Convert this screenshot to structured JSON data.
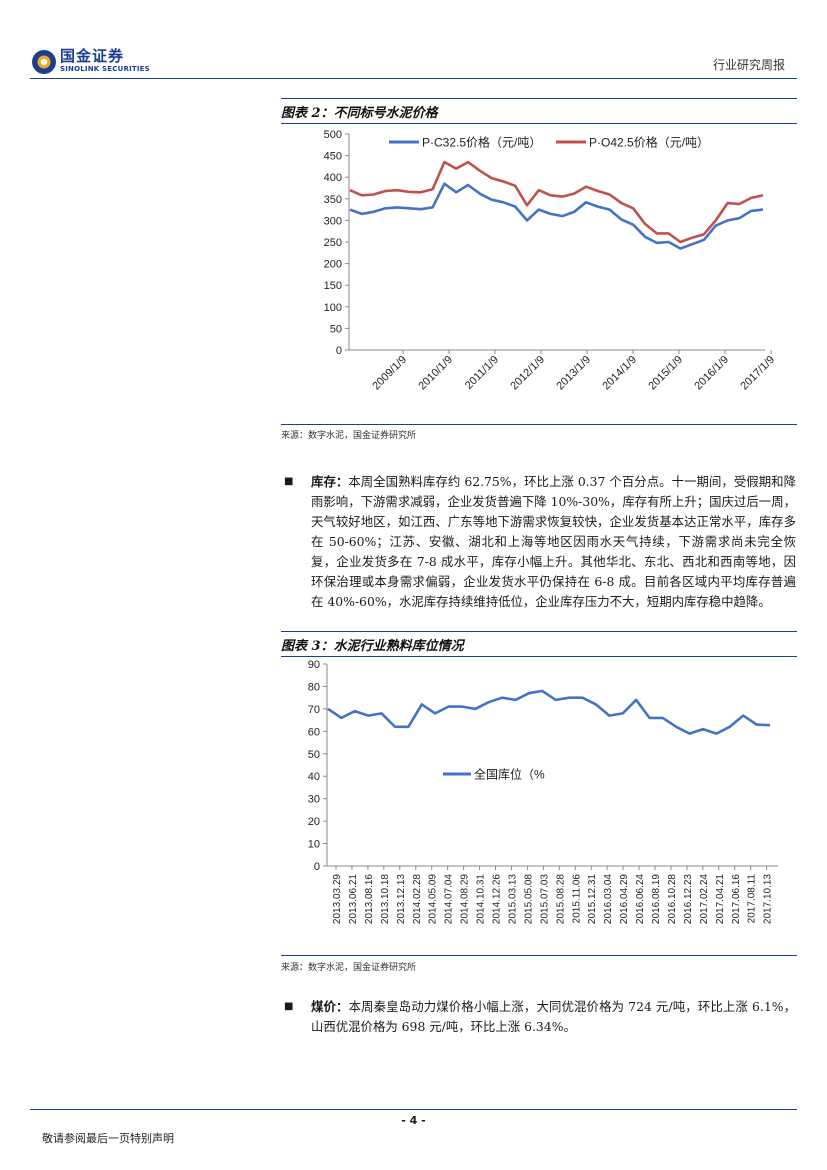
{
  "header": {
    "logo_cn": "国金证券",
    "logo_en": "SINOLINK SECURITIES",
    "report_type": "行业研究周报"
  },
  "figure2": {
    "title": "图表 2：不同标号水泥价格",
    "source": "来源：数字水泥，国金证券研究所",
    "chart_data": {
      "type": "line",
      "title": "",
      "ylim": [
        0,
        500
      ],
      "yticks": [
        "0",
        "50",
        "100",
        "150",
        "200",
        "250",
        "300",
        "350",
        "400",
        "450",
        "500"
      ],
      "xticks": [
        "2009/1/9",
        "2010/1/9",
        "2011/1/9",
        "2012/1/9",
        "2013/1/9",
        "2014/1/9",
        "2015/1/9",
        "2016/1/9",
        "2017/1/9"
      ],
      "x": [
        "2009-01",
        "2009-04",
        "2009-07",
        "2009-10",
        "2010-01",
        "2010-04",
        "2010-07",
        "2010-10",
        "2011-01",
        "2011-04",
        "2011-07",
        "2011-10",
        "2012-01",
        "2012-04",
        "2012-07",
        "2012-10",
        "2013-01",
        "2013-04",
        "2013-07",
        "2013-10",
        "2014-01",
        "2014-04",
        "2014-07",
        "2014-10",
        "2015-01",
        "2015-04",
        "2015-07",
        "2015-10",
        "2016-01",
        "2016-04",
        "2016-07",
        "2016-10",
        "2017-01",
        "2017-04",
        "2017-07",
        "2017-10"
      ],
      "series": [
        {
          "name": "P·C32.5价格（元/吨）",
          "color": "#4472c4",
          "values": [
            325,
            315,
            320,
            328,
            330,
            328,
            326,
            330,
            385,
            365,
            382,
            362,
            348,
            342,
            332,
            300,
            325,
            315,
            310,
            320,
            342,
            332,
            325,
            302,
            290,
            262,
            248,
            250,
            235,
            245,
            255,
            288,
            300,
            305,
            322,
            325
          ]
        },
        {
          "name": "P·O42.5价格（元/吨）",
          "color": "#c0504d",
          "values": [
            370,
            358,
            360,
            368,
            370,
            366,
            365,
            372,
            435,
            420,
            435,
            415,
            398,
            390,
            380,
            335,
            370,
            358,
            355,
            362,
            378,
            368,
            360,
            340,
            328,
            292,
            270,
            270,
            250,
            260,
            268,
            300,
            340,
            338,
            352,
            358
          ]
        }
      ]
    }
  },
  "paragraph_inventory": {
    "bullet": "■",
    "label": "库存：",
    "text": "本周全国熟料库存约 62.75%，环比上涨 0.37 个百分点。十一期间，受假期和降雨影响，下游需求减弱，企业发货普遍下降 10%-30%，库存有所上升；国庆过后一周，天气较好地区，如江西、广东等地下游需求恢复较快，企业发货基本达正常水平，库存多在 50-60%；江苏、安徽、湖北和上海等地区因雨水天气持续，下游需求尚未完全恢复，企业发货多在 7-8 成水平，库存小幅上升。其他华北、东北、西北和西南等地，因环保治理或本身需求偏弱，企业发货水平仍保持在 6-8 成。目前各区域内平均库存普遍在 40%-60%，水泥库存持续维持低位，企业库存压力不大，短期内库存稳中趋降。"
  },
  "figure3": {
    "title": "图表 3：水泥行业熟料库位情况",
    "source": "来源：数字水泥，国金证券研究所",
    "chart_data": {
      "type": "line",
      "title": "",
      "ylim": [
        0,
        90
      ],
      "yticks": [
        "0",
        "10",
        "20",
        "30",
        "40",
        "50",
        "60",
        "70",
        "80",
        "90"
      ],
      "xticks": [
        "2013.03.29",
        "2013.06.21",
        "2013.08.16",
        "2013.10.18",
        "2013.12.13",
        "2014.02.28",
        "2014.05.09",
        "2014.07.04",
        "2014.08.29",
        "2014.10.31",
        "2014.12.26",
        "2015.03.13",
        "2015.05.08",
        "2015.07.03",
        "2015.08.28",
        "2015.11.06",
        "2015.12.31",
        "2016.03.04",
        "2016.04.29",
        "2016.06.24",
        "2016.08.19",
        "2016.10.28",
        "2016.12.23",
        "2017.02.24",
        "2017.04.21",
        "2017.06.16",
        "2017.08.11",
        "2017.10.13"
      ],
      "series": [
        {
          "name": "全国库位（%",
          "color": "#4472c4",
          "values": [
            70,
            66,
            69,
            67,
            68,
            62,
            62,
            72,
            68,
            71,
            71,
            70,
            73,
            75,
            74,
            77,
            78,
            74,
            75,
            75,
            72,
            67,
            68,
            74,
            66,
            66,
            62,
            59,
            61,
            59,
            62,
            67,
            63,
            62.75
          ]
        }
      ]
    }
  },
  "paragraph_coal": {
    "bullet": "■",
    "label": "煤价：",
    "text": "本周秦皇岛动力煤价格小幅上涨，大同优混价格为 724 元/吨，环比上涨 6.1%，山西优混价格为 698 元/吨，环比上涨 6.34%。"
  },
  "footer": {
    "page_number": "- 4 -",
    "disclaimer": "敬请参阅最后一页特别声明"
  },
  "colors": {
    "brand_blue": "#1b3f8f",
    "series_blue": "#4472c4",
    "series_red": "#c0504d"
  }
}
